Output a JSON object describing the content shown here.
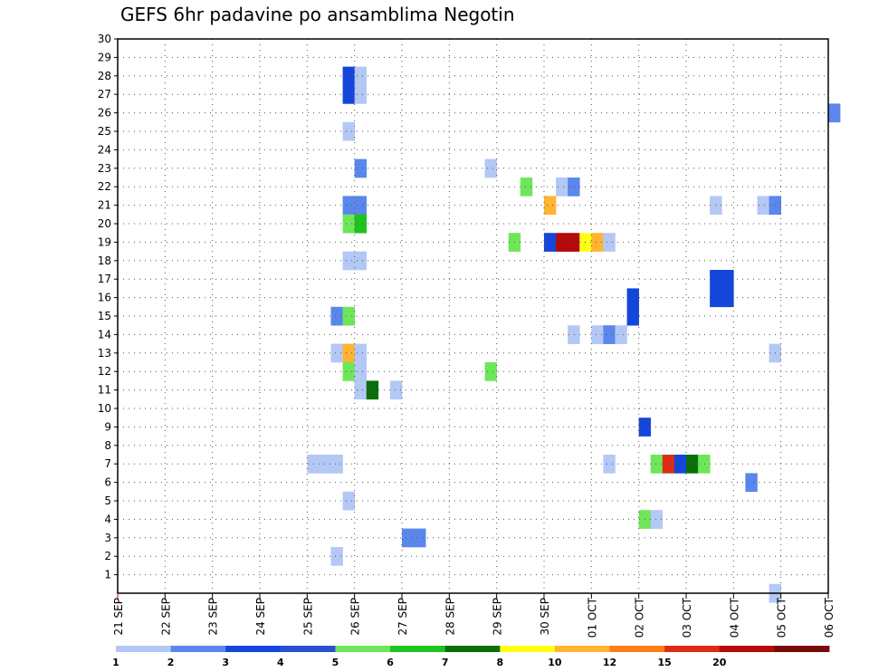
{
  "chart_data": {
    "type": "heatmap",
    "title": "GEFS 6hr padavine po ansamblima Negotin",
    "xlabel": "",
    "ylabel": "",
    "x_unit": "6-hour steps from 21 SEP 00Z",
    "x_range": [
      0,
      60
    ],
    "y_range": [
      0,
      30
    ],
    "x_tick_labels": [
      "21 SEP",
      "22 SEP",
      "23 SEP",
      "24 SEP",
      "25 SEP",
      "26 SEP",
      "27 SEP",
      "28 SEP",
      "29 SEP",
      "30 SEP",
      "01 OCT",
      "02 OCT",
      "03 OCT",
      "04 OCT",
      "05 OCT",
      "06 OCT"
    ],
    "y_tick_labels": [
      "1",
      "2",
      "3",
      "4",
      "5",
      "6",
      "7",
      "8",
      "9",
      "10",
      "11",
      "12",
      "13",
      "14",
      "15",
      "16",
      "17",
      "18",
      "19",
      "20",
      "21",
      "22",
      "23",
      "24",
      "25",
      "26",
      "27",
      "28",
      "29",
      "30"
    ],
    "grid": true,
    "colorbar": {
      "labels": [
        "1",
        "2",
        "3",
        "4",
        "5",
        "6",
        "7",
        "8",
        "10",
        "12",
        "15",
        "20"
      ],
      "colors": [
        "#b4c8f5",
        "#5a87eb",
        "#1446dc",
        "#2850d2",
        "#6ee65a",
        "#1ec31e",
        "#0a6e0a",
        "#ffff14",
        "#ffb432",
        "#ff7d14",
        "#dc2d14",
        "#b40a0a",
        "#780a0a"
      ]
    },
    "cells": [
      {
        "member": 28,
        "step": 19,
        "level": 3
      },
      {
        "member": 28,
        "step": 20,
        "level": 1
      },
      {
        "member": 27,
        "step": 19,
        "level": 3
      },
      {
        "member": 27,
        "step": 20,
        "level": 1
      },
      {
        "member": 26,
        "step": 60,
        "level": 2
      },
      {
        "member": 25,
        "step": 19,
        "level": 1
      },
      {
        "member": 23,
        "step": 20,
        "level": 2
      },
      {
        "member": 23,
        "step": 31,
        "level": 1
      },
      {
        "member": 22,
        "step": 34,
        "level": 5
      },
      {
        "member": 22,
        "step": 37,
        "level": 1
      },
      {
        "member": 22,
        "step": 38,
        "level": 2
      },
      {
        "member": 21,
        "step": 19,
        "level": 2
      },
      {
        "member": 21,
        "step": 20,
        "level": 2
      },
      {
        "member": 21,
        "step": 36,
        "level": 9
      },
      {
        "member": 21,
        "step": 50,
        "level": 1
      },
      {
        "member": 21,
        "step": 54,
        "level": 1
      },
      {
        "member": 21,
        "step": 55,
        "level": 2
      },
      {
        "member": 20,
        "step": 19,
        "level": 5
      },
      {
        "member": 20,
        "step": 20,
        "level": 6
      },
      {
        "member": 19,
        "step": 33,
        "level": 5
      },
      {
        "member": 19,
        "step": 36,
        "level": 3
      },
      {
        "member": 19,
        "step": 37,
        "level": 12
      },
      {
        "member": 19,
        "step": 38,
        "level": 12
      },
      {
        "member": 19,
        "step": 39,
        "level": 8
      },
      {
        "member": 19,
        "step": 40,
        "level": 9
      },
      {
        "member": 19,
        "step": 41,
        "level": 1
      },
      {
        "member": 18,
        "step": 19,
        "level": 1
      },
      {
        "member": 18,
        "step": 20,
        "level": 1
      },
      {
        "member": 17,
        "step": 50,
        "level": 3
      },
      {
        "member": 17,
        "step": 51,
        "level": 3
      },
      {
        "member": 16,
        "step": 43,
        "level": 3
      },
      {
        "member": 16,
        "step": 50,
        "level": 3
      },
      {
        "member": 16,
        "step": 51,
        "level": 3
      },
      {
        "member": 15,
        "step": 18,
        "level": 2
      },
      {
        "member": 15,
        "step": 19,
        "level": 5
      },
      {
        "member": 15,
        "step": 43,
        "level": 3
      },
      {
        "member": 14,
        "step": 38,
        "level": 1
      },
      {
        "member": 14,
        "step": 40,
        "level": 1
      },
      {
        "member": 14,
        "step": 41,
        "level": 2
      },
      {
        "member": 14,
        "step": 42,
        "level": 1
      },
      {
        "member": 13,
        "step": 18,
        "level": 1
      },
      {
        "member": 13,
        "step": 19,
        "level": 9
      },
      {
        "member": 13,
        "step": 20,
        "level": 1
      },
      {
        "member": 13,
        "step": 55,
        "level": 1
      },
      {
        "member": 12,
        "step": 19,
        "level": 5
      },
      {
        "member": 12,
        "step": 20,
        "level": 1
      },
      {
        "member": 12,
        "step": 31,
        "level": 5
      },
      {
        "member": 11,
        "step": 20,
        "level": 1
      },
      {
        "member": 11,
        "step": 21,
        "level": 7
      },
      {
        "member": 11,
        "step": 23,
        "level": 1
      },
      {
        "member": 9,
        "step": 44,
        "level": 3
      },
      {
        "member": 7,
        "step": 16,
        "level": 1
      },
      {
        "member": 7,
        "step": 17,
        "level": 1
      },
      {
        "member": 7,
        "step": 18,
        "level": 1
      },
      {
        "member": 7,
        "step": 41,
        "level": 1
      },
      {
        "member": 7,
        "step": 45,
        "level": 5
      },
      {
        "member": 7,
        "step": 46,
        "level": 11
      },
      {
        "member": 7,
        "step": 47,
        "level": 3
      },
      {
        "member": 7,
        "step": 48,
        "level": 7
      },
      {
        "member": 7,
        "step": 49,
        "level": 5
      },
      {
        "member": 6,
        "step": 53,
        "level": 2
      },
      {
        "member": 5,
        "step": 19,
        "level": 1
      },
      {
        "member": 4,
        "step": 44,
        "level": 5
      },
      {
        "member": 4,
        "step": 45,
        "level": 1
      },
      {
        "member": 3,
        "step": 24,
        "level": 2
      },
      {
        "member": 3,
        "step": 25,
        "level": 2
      },
      {
        "member": 2,
        "step": 18,
        "level": 1
      },
      {
        "member": 0,
        "step": 55,
        "level": 1
      }
    ]
  }
}
